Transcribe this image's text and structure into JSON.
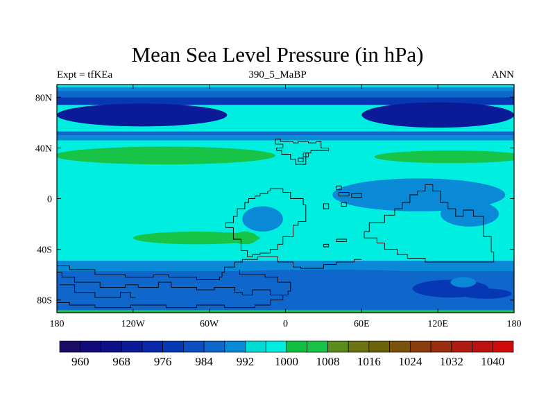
{
  "title": "Mean Sea Level Pressure (in hPa)",
  "subtitle_left": "Expt = tfKEa",
  "subtitle_center": "390_5_MaBP",
  "subtitle_right": "ANN",
  "map": {
    "projection": "cylindrical-equidistant",
    "lon_range": [
      -180,
      180
    ],
    "lat_range": [
      -90,
      90
    ],
    "lat_ticks": [
      {
        "value": 80,
        "label": "80N"
      },
      {
        "value": 40,
        "label": "40N"
      },
      {
        "value": 0,
        "label": "0"
      },
      {
        "value": -40,
        "label": "40S"
      },
      {
        "value": -80,
        "label": "80S"
      }
    ],
    "lon_ticks": [
      {
        "value": -180,
        "label": "180"
      },
      {
        "value": -120,
        "label": "120W"
      },
      {
        "value": -60,
        "label": "60W"
      },
      {
        "value": 0,
        "label": "0"
      },
      {
        "value": 60,
        "label": "60E"
      },
      {
        "value": 120,
        "label": "120E"
      },
      {
        "value": 180,
        "label": "180"
      }
    ],
    "background_level_hPa": 1000,
    "bands": [
      {
        "lat_from": 90,
        "lat_to": 88,
        "level": 1000
      },
      {
        "lat_from": 88,
        "lat_to": 85,
        "level": 992
      },
      {
        "lat_from": 85,
        "lat_to": 80,
        "level": 984
      },
      {
        "lat_from": 80,
        "lat_to": 74,
        "level": 976
      },
      {
        "lat_from": 53,
        "lat_to": 50,
        "level": 984
      },
      {
        "lat_from": 50,
        "lat_to": 46,
        "level": 992
      },
      {
        "lat_from": -49,
        "lat_to": -57,
        "level": 992
      },
      {
        "lat_from": -57,
        "lat_to": -88,
        "level": 984
      },
      {
        "lat_from": -88,
        "lat_to": -90,
        "level": 1008
      }
    ],
    "regions": [
      {
        "name": "north-polar-low-west",
        "level": 968,
        "lon_center": -113,
        "lat_center": 66,
        "lon_radius": 67,
        "lat_radius": 9
      },
      {
        "name": "north-polar-low-east",
        "level": 968,
        "lon_center": 120,
        "lat_center": 66,
        "lon_radius": 60,
        "lat_radius": 10
      },
      {
        "name": "north-high-west",
        "level": 1008,
        "lon_center": -95,
        "lat_center": 34,
        "lon_radius": 87,
        "lat_radius": 7
      },
      {
        "name": "north-high-east",
        "level": 1008,
        "lon_center": 130,
        "lat_center": 33,
        "lon_radius": 60,
        "lat_radius": 5
      },
      {
        "name": "south-high",
        "level": 1008,
        "lon_center": -70,
        "lat_center": -31,
        "lon_radius": 50,
        "lat_radius": 5
      },
      {
        "name": "south-high-lobe",
        "level": 1008,
        "lon_center": -32,
        "lat_center": -31,
        "lon_radius": 10,
        "lat_radius": 5
      },
      {
        "name": "tropical-low-east",
        "level": 992,
        "lon_center": 105,
        "lat_center": 3,
        "lon_radius": 68,
        "lat_radius": 13
      },
      {
        "name": "tropical-low-east-tail",
        "level": 992,
        "lon_center": 145,
        "lat_center": -12,
        "lon_radius": 23,
        "lat_radius": 10
      },
      {
        "name": "tropical-low-west",
        "level": 992,
        "lon_center": -18,
        "lat_center": -16,
        "lon_radius": 16,
        "lat_radius": 10
      },
      {
        "name": "southern-trough",
        "level": 984,
        "lon_center": 30,
        "lat_center": -60,
        "lon_radius": 90,
        "lat_radius": 4
      },
      {
        "name": "southern-low-east",
        "level": 976,
        "lon_center": 130,
        "lat_center": -71,
        "lon_radius": 30,
        "lat_radius": 7
      },
      {
        "name": "southern-low-west",
        "level": 976,
        "lon_center": 158,
        "lat_center": -75,
        "lon_radius": 20,
        "lat_radius": 4
      },
      {
        "name": "patch-south-pacific",
        "level": 992,
        "lon_center": 140,
        "lat_center": -66,
        "lon_radius": 10,
        "lat_radius": 4
      }
    ],
    "coastlines": [
      [
        [
          -8,
          43
        ],
        [
          -8,
          47
        ],
        [
          -4,
          47
        ],
        [
          -4,
          45
        ],
        [
          6,
          45
        ],
        [
          6,
          44
        ],
        [
          10,
          44
        ],
        [
          10,
          45
        ],
        [
          18,
          45
        ],
        [
          18,
          44
        ],
        [
          24,
          44
        ],
        [
          24,
          45
        ],
        [
          28,
          45
        ],
        [
          28,
          40
        ],
        [
          34,
          40
        ],
        [
          34,
          38
        ],
        [
          20,
          38
        ],
        [
          20,
          36
        ],
        [
          16,
          36
        ],
        [
          16,
          27
        ],
        [
          8,
          27
        ],
        [
          8,
          31
        ],
        [
          4,
          31
        ],
        [
          4,
          35
        ],
        [
          -3,
          35
        ],
        [
          -3,
          38
        ],
        [
          -7,
          38
        ],
        [
          -7,
          40
        ],
        [
          -2,
          40
        ],
        [
          -2,
          43
        ],
        [
          -8,
          43
        ]
      ],
      [
        [
          -24,
          0
        ],
        [
          -24,
          2
        ],
        [
          -20,
          2
        ],
        [
          -20,
          4
        ],
        [
          -14,
          4
        ],
        [
          -14,
          6
        ],
        [
          -12,
          6
        ],
        [
          -12,
          8
        ],
        [
          -2,
          8
        ],
        [
          -2,
          5
        ],
        [
          4,
          5
        ],
        [
          4,
          0
        ],
        [
          14,
          0
        ],
        [
          14,
          -5
        ],
        [
          16,
          -5
        ],
        [
          16,
          -18
        ],
        [
          10,
          -18
        ],
        [
          10,
          -21
        ],
        [
          6,
          -21
        ],
        [
          6,
          -30
        ],
        [
          -2,
          -30
        ],
        [
          -2,
          -36
        ],
        [
          -6,
          -36
        ],
        [
          -6,
          -40
        ],
        [
          -12,
          -40
        ],
        [
          -12,
          -43
        ],
        [
          -20,
          -43
        ],
        [
          -20,
          -44
        ],
        [
          -26,
          -44
        ],
        [
          -26,
          -46
        ],
        [
          -30,
          -46
        ],
        [
          -30,
          -41
        ],
        [
          -35,
          -41
        ],
        [
          -35,
          -32
        ],
        [
          -41,
          -32
        ],
        [
          -41,
          -23
        ],
        [
          -47,
          -23
        ],
        [
          -47,
          -19
        ],
        [
          -41,
          -19
        ],
        [
          -41,
          -14
        ],
        [
          -38,
          -14
        ],
        [
          -38,
          -8
        ],
        [
          -32,
          -8
        ],
        [
          -32,
          -3
        ],
        [
          -29,
          -3
        ],
        [
          -29,
          0
        ],
        [
          -24,
          0
        ]
      ],
      [
        [
          62,
          -26
        ],
        [
          66,
          -26
        ],
        [
          66,
          -19
        ],
        [
          78,
          -19
        ],
        [
          78,
          -13
        ],
        [
          86,
          -13
        ],
        [
          86,
          -8
        ],
        [
          92,
          -8
        ],
        [
          92,
          -3
        ],
        [
          98,
          -3
        ],
        [
          98,
          3
        ],
        [
          104,
          3
        ],
        [
          104,
          6
        ],
        [
          110,
          6
        ],
        [
          110,
          11
        ],
        [
          116,
          11
        ],
        [
          116,
          6
        ],
        [
          122,
          6
        ],
        [
          122,
          -3
        ],
        [
          128,
          -3
        ],
        [
          128,
          -8
        ],
        [
          134,
          -8
        ],
        [
          134,
          -14
        ],
        [
          140,
          -14
        ],
        [
          140,
          -9
        ],
        [
          148,
          -9
        ],
        [
          148,
          -14
        ],
        [
          156,
          -14
        ],
        [
          156,
          -30
        ],
        [
          162,
          -30
        ],
        [
          162,
          -42
        ],
        [
          164,
          -42
        ],
        [
          164,
          -50
        ],
        [
          110,
          -50
        ],
        [
          110,
          -47
        ],
        [
          96,
          -47
        ],
        [
          96,
          -44
        ],
        [
          88,
          -44
        ],
        [
          88,
          -40
        ],
        [
          78,
          -40
        ],
        [
          78,
          -35
        ],
        [
          72,
          -35
        ],
        [
          72,
          -31
        ],
        [
          62,
          -31
        ],
        [
          62,
          -26
        ]
      ],
      [
        [
          -180,
          -53
        ],
        [
          -170,
          -53
        ],
        [
          -170,
          -56
        ],
        [
          -150,
          -56
        ],
        [
          -150,
          -60
        ],
        [
          -126,
          -60
        ],
        [
          -126,
          -62
        ],
        [
          -104,
          -62
        ],
        [
          -104,
          -60
        ],
        [
          -92,
          -60
        ],
        [
          -92,
          -62
        ],
        [
          -70,
          -62
        ],
        [
          -70,
          -64
        ],
        [
          -52,
          -64
        ],
        [
          -52,
          -62
        ],
        [
          -50,
          -62
        ],
        [
          -50,
          -58
        ],
        [
          -48,
          -58
        ],
        [
          -48,
          -54
        ],
        [
          -40,
          -54
        ],
        [
          -40,
          -50
        ],
        [
          -34,
          -50
        ],
        [
          -34,
          -48
        ],
        [
          -22,
          -48
        ],
        [
          -22,
          -46
        ],
        [
          -6,
          -46
        ],
        [
          -6,
          -50
        ],
        [
          6,
          -50
        ],
        [
          6,
          -54
        ],
        [
          12,
          -54
        ],
        [
          12,
          -55
        ],
        [
          30,
          -55
        ],
        [
          30,
          -52
        ],
        [
          40,
          -52
        ],
        [
          40,
          -50
        ],
        [
          54,
          -50
        ],
        [
          54,
          -48
        ],
        [
          60,
          -48
        ]
      ],
      [
        [
          -180,
          -58
        ],
        [
          -176,
          -58
        ],
        [
          -176,
          -62
        ],
        [
          -166,
          -62
        ],
        [
          -166,
          -66
        ],
        [
          -146,
          -66
        ],
        [
          -146,
          -70
        ],
        [
          -126,
          -70
        ],
        [
          -126,
          -68
        ],
        [
          -116,
          -68
        ],
        [
          -116,
          -70
        ],
        [
          -100,
          -70
        ],
        [
          -100,
          -66
        ],
        [
          -90,
          -66
        ],
        [
          -90,
          -70
        ],
        [
          -70,
          -70
        ],
        [
          -70,
          -72
        ],
        [
          -56,
          -72
        ],
        [
          -56,
          -70
        ],
        [
          -40,
          -70
        ],
        [
          -40,
          -74
        ],
        [
          -34,
          -74
        ],
        [
          -34,
          -76
        ],
        [
          -26,
          -76
        ],
        [
          -26,
          -72
        ],
        [
          -12,
          -72
        ],
        [
          -12,
          -76
        ],
        [
          2,
          -76
        ],
        [
          2,
          -73
        ],
        [
          4,
          -73
        ],
        [
          4,
          -66
        ],
        [
          -6,
          -66
        ],
        [
          -6,
          -62
        ],
        [
          -16,
          -62
        ],
        [
          -16,
          -60
        ],
        [
          -36,
          -60
        ],
        [
          -36,
          -56
        ]
      ],
      [
        [
          -178,
          -68
        ],
        [
          -166,
          -68
        ],
        [
          -166,
          -74
        ],
        [
          -150,
          -74
        ],
        [
          -150,
          -78
        ],
        [
          -130,
          -78
        ],
        [
          -130,
          -74
        ],
        [
          -122,
          -74
        ],
        [
          -122,
          -78
        ],
        [
          -118,
          -78
        ]
      ],
      [
        [
          -180,
          -82
        ],
        [
          -170,
          -82
        ],
        [
          -170,
          -84
        ],
        [
          -150,
          -84
        ],
        [
          -150,
          -86
        ],
        [
          -122,
          -86
        ],
        [
          -122,
          -84
        ],
        [
          -94,
          -84
        ],
        [
          -94,
          -86
        ],
        [
          -70,
          -86
        ],
        [
          -70,
          -84
        ],
        [
          -48,
          -84
        ],
        [
          -48,
          -86
        ],
        [
          -24,
          -86
        ],
        [
          -24,
          -84
        ],
        [
          -12,
          -84
        ],
        [
          -12,
          -80
        ],
        [
          -2,
          -80
        ],
        [
          -2,
          -76
        ]
      ],
      [
        [
          10,
          32
        ],
        [
          14,
          32
        ],
        [
          14,
          29
        ],
        [
          10,
          29
        ],
        [
          10,
          32
        ]
      ],
      [
        [
          14,
          36
        ],
        [
          18,
          36
        ],
        [
          18,
          33
        ],
        [
          14,
          33
        ],
        [
          14,
          36
        ]
      ],
      [
        [
          40,
          10
        ],
        [
          44,
          10
        ],
        [
          44,
          7
        ],
        [
          40,
          7
        ],
        [
          40,
          10
        ]
      ],
      [
        [
          42,
          5
        ],
        [
          50,
          5
        ],
        [
          50,
          2
        ],
        [
          42,
          2
        ],
        [
          42,
          5
        ]
      ],
      [
        [
          52,
          4
        ],
        [
          60,
          4
        ],
        [
          60,
          1
        ],
        [
          52,
          1
        ],
        [
          52,
          4
        ]
      ],
      [
        [
          44,
          -3
        ],
        [
          48,
          -3
        ],
        [
          48,
          -6
        ],
        [
          44,
          -6
        ],
        [
          44,
          -3
        ]
      ],
      [
        [
          30,
          -4
        ],
        [
          34,
          -4
        ],
        [
          34,
          -8
        ],
        [
          30,
          -8
        ],
        [
          30,
          -4
        ]
      ],
      [
        [
          40,
          -32
        ],
        [
          48,
          -32
        ],
        [
          48,
          -34
        ],
        [
          40,
          -34
        ],
        [
          40,
          -32
        ]
      ],
      [
        [
          30,
          -36
        ],
        [
          34,
          -36
        ],
        [
          34,
          -38
        ],
        [
          30,
          -38
        ],
        [
          30,
          -36
        ]
      ]
    ]
  },
  "colorbar": {
    "colors": [
      "#1a0d66",
      "#120a78",
      "#0c118a",
      "#0b1b98",
      "#0a28a8",
      "#0638b6",
      "#0b4fc0",
      "#0f66cb",
      "#0a8ad6",
      "#00dcd4",
      "#00eee0",
      "#10c040",
      "#18c448",
      "#5a8c1e",
      "#6a7212",
      "#6b640c",
      "#7a520c",
      "#8a3e0e",
      "#9c2c10",
      "#ae1c10",
      "#be1212",
      "#cf0c0c"
    ],
    "labels": [
      {
        "after_box": 1,
        "text": "960"
      },
      {
        "after_box": 3,
        "text": "968"
      },
      {
        "after_box": 5,
        "text": "976"
      },
      {
        "after_box": 7,
        "text": "984"
      },
      {
        "after_box": 9,
        "text": "992"
      },
      {
        "after_box": 11,
        "text": "1000"
      },
      {
        "after_box": 13,
        "text": "1008"
      },
      {
        "after_box": 15,
        "text": "1016"
      },
      {
        "after_box": 17,
        "text": "1024"
      },
      {
        "after_box": 19,
        "text": "1032"
      },
      {
        "after_box": 21,
        "text": "1040"
      }
    ]
  },
  "level_colors": {
    "960": "#120a78",
    "968": "#0b1b98",
    "976": "#0638b6",
    "984": "#0f66cb",
    "992": "#0a8ad6",
    "1000": "#00eee0",
    "1008": "#18c448"
  }
}
